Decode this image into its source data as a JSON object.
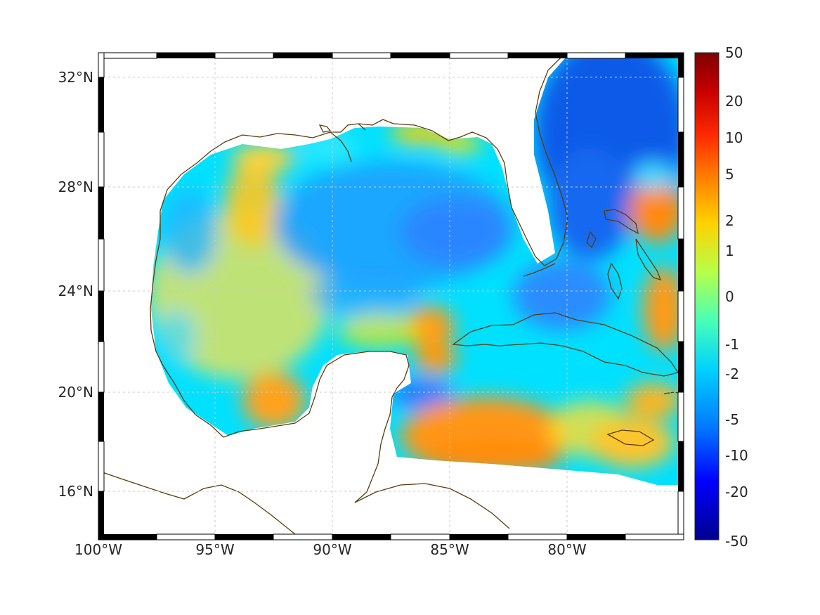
{
  "map": {
    "colors": {
      "coast": "#5a3c0f",
      "grid": "#c8c8c8",
      "frame": "#000000",
      "background": "#ffffff"
    },
    "lon_ticks": [
      "100°W",
      "95°W",
      "90°W",
      "85°W",
      "80°W"
    ],
    "lat_ticks": [
      "32°N",
      "28°N",
      "24°N",
      "20°N",
      "16°N"
    ],
    "lon_range": [
      -100,
      -75.1
    ],
    "lat_range": [
      14.2,
      32.9
    ],
    "lon_tick_values": [
      -100,
      -95,
      -90,
      -85,
      -80
    ],
    "lat_tick_values": [
      32,
      28,
      24,
      20,
      16
    ],
    "field_description_colors": {
      "deep_blue": "#0050e6",
      "blue": "#1e90ff",
      "cyan": "#00dcff",
      "yellow": "#ffe600",
      "orange": "#ff9a1e"
    }
  },
  "colorbar": {
    "labels": [
      "50",
      "20",
      "10",
      "5",
      "2",
      "1",
      "0",
      "-1",
      "-2",
      "-5",
      "-10",
      "-20",
      "-50"
    ],
    "values": [
      50,
      20,
      10,
      5,
      2,
      1,
      0,
      -1,
      -2,
      -5,
      -10,
      -20,
      -50
    ],
    "stops": [
      "#7f0000",
      "#c80000",
      "#ff2a00",
      "#ff7a00",
      "#ffd200",
      "#b7ff48",
      "#48ffb7",
      "#00d2ff",
      "#0078ff",
      "#0000ff",
      "#00008f"
    ]
  }
}
